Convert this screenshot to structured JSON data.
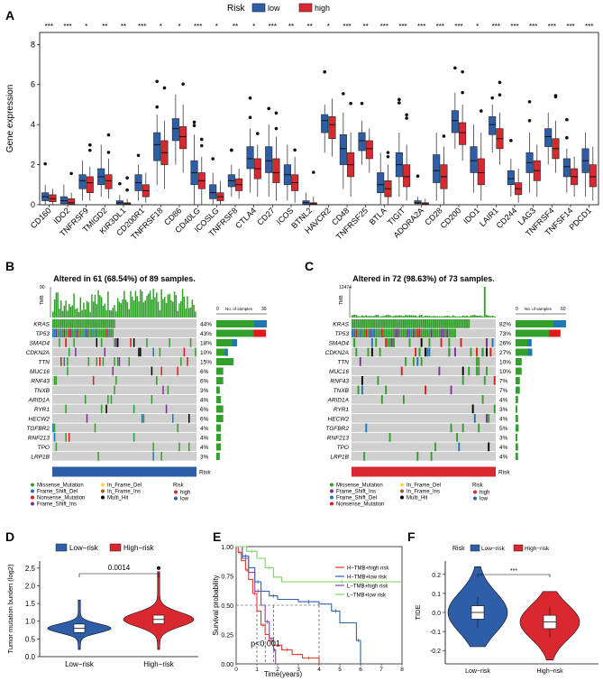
{
  "panel_letters": [
    "A",
    "B",
    "C",
    "D",
    "E",
    "F"
  ],
  "chart_data": [
    {
      "id": "A",
      "type": "boxplot",
      "legend": {
        "title": "Risk",
        "entries": [
          {
            "name": "low",
            "color": "#2f5ea8"
          },
          {
            "name": "high",
            "color": "#d9282f"
          }
        ],
        "position": "top"
      },
      "ylabel": "Gene expression",
      "ylim": [
        0,
        8.6
      ],
      "yticks": [
        0,
        2,
        4,
        6,
        8
      ],
      "categories": [
        "CD160",
        "IDO2",
        "TNFRSF9",
        "TMIGD2",
        "KIR3DL1",
        "CD200R1",
        "TNFRSF18",
        "CD86",
        "CD40LG",
        "ICOSLG",
        "TNFRSF8",
        "CTLA4",
        "CD27",
        "ICOS",
        "BTNL2",
        "HAVCR2",
        "CD48",
        "TNFRSF25",
        "BTLA",
        "TIGIT",
        "ADORA2A",
        "CD28",
        "CD200",
        "IDO1",
        "LAIR1",
        "CD244",
        "LAG3",
        "TNFRSF4",
        "TNFSF14",
        "PDCD1"
      ],
      "significance": [
        "***",
        "***",
        "*",
        "**",
        "**",
        "***",
        "*",
        "*",
        "***",
        "*",
        "**",
        "*",
        "***",
        "**",
        "**",
        "*",
        "***",
        "**",
        "***",
        "***",
        "***",
        "***",
        "***",
        "*",
        "***",
        "***",
        "***",
        "***",
        "***",
        "***"
      ],
      "series": [
        {
          "name": "low",
          "medians": [
            0.4,
            0.2,
            1.2,
            1.4,
            0.1,
            1.1,
            3.0,
            3.8,
            1.6,
            0.6,
            1.2,
            2.3,
            2.2,
            1.5,
            0.1,
            4.2,
            2.8,
            3.2,
            1.0,
            2.0,
            0.1,
            1.7,
            4.2,
            2.2,
            4.0,
            1.3,
            2.1,
            3.4,
            1.9,
            2.2
          ],
          "q1": [
            0.2,
            0.05,
            0.8,
            1.0,
            0.02,
            0.7,
            2.2,
            3.2,
            1.0,
            0.3,
            0.9,
            1.8,
            1.6,
            1.0,
            0.02,
            3.6,
            2.0,
            2.7,
            0.6,
            1.4,
            0.05,
            1.1,
            3.6,
            1.6,
            3.5,
            1.0,
            1.6,
            2.9,
            1.4,
            1.6
          ],
          "q3": [
            0.6,
            0.4,
            1.5,
            1.8,
            0.2,
            1.5,
            3.6,
            4.3,
            2.2,
            1.0,
            1.5,
            2.9,
            2.9,
            2.0,
            0.2,
            4.5,
            3.5,
            3.6,
            1.6,
            2.6,
            0.2,
            2.5,
            4.7,
            2.9,
            4.4,
            1.7,
            2.6,
            3.8,
            2.3,
            2.8
          ],
          "min": [
            0.0,
            0.0,
            0.2,
            0.4,
            0.0,
            0.2,
            1.0,
            2.0,
            0.0,
            0.0,
            0.4,
            0.6,
            0.4,
            0.2,
            0.0,
            2.6,
            0.8,
            2.0,
            0.0,
            0.4,
            0.0,
            0.2,
            2.8,
            0.6,
            2.6,
            0.4,
            0.6,
            2.0,
            0.6,
            0.4
          ],
          "max": [
            1.0,
            1.0,
            2.2,
            3.0,
            0.5,
            2.0,
            4.5,
            5.5,
            3.5,
            1.6,
            2.0,
            3.8,
            4.0,
            3.0,
            0.6,
            5.0,
            4.6,
            4.2,
            2.6,
            3.6,
            0.4,
            3.6,
            5.6,
            4.0,
            5.0,
            2.3,
            3.6,
            4.6,
            2.8,
            3.6
          ]
        },
        {
          "name": "high",
          "medians": [
            0.3,
            0.1,
            1.1,
            1.2,
            0.05,
            0.7,
            2.6,
            3.4,
            1.2,
            0.4,
            1.0,
            1.8,
            1.6,
            1.1,
            0.05,
            4.0,
            2.0,
            2.8,
            0.8,
            1.4,
            0.05,
            1.4,
            3.6,
            1.6,
            3.3,
            0.8,
            1.7,
            2.8,
            1.4,
            1.4
          ],
          "q1": [
            0.15,
            0.03,
            0.6,
            0.8,
            0.01,
            0.4,
            2.0,
            2.8,
            0.8,
            0.2,
            0.7,
            1.3,
            1.1,
            0.7,
            0.01,
            3.3,
            1.4,
            2.3,
            0.4,
            0.9,
            0.02,
            0.8,
            3.0,
            1.0,
            2.8,
            0.5,
            1.2,
            2.3,
            1.0,
            0.9
          ],
          "q3": [
            0.5,
            0.3,
            1.4,
            1.5,
            0.1,
            1.0,
            3.2,
            3.9,
            1.6,
            0.6,
            1.3,
            2.3,
            2.3,
            1.5,
            0.1,
            4.4,
            2.6,
            3.2,
            1.2,
            2.0,
            0.1,
            2.0,
            4.1,
            2.3,
            3.8,
            1.1,
            2.2,
            3.3,
            1.8,
            2.0
          ],
          "min": [
            0.0,
            0.0,
            0.2,
            0.3,
            0.0,
            0.1,
            0.8,
            1.6,
            0.0,
            0.0,
            0.3,
            0.4,
            0.2,
            0.1,
            0.0,
            2.4,
            0.4,
            1.6,
            0.0,
            0.2,
            0.0,
            0.0,
            2.2,
            0.2,
            2.0,
            0.1,
            0.4,
            1.6,
            0.4,
            0.2
          ],
          "max": [
            0.8,
            0.6,
            1.9,
            2.3,
            0.3,
            1.6,
            4.2,
            5.0,
            2.4,
            1.2,
            1.8,
            3.0,
            3.4,
            2.4,
            0.4,
            5.3,
            3.6,
            3.8,
            2.0,
            3.0,
            0.3,
            2.9,
            5.0,
            3.6,
            4.6,
            1.8,
            3.0,
            4.2,
            2.4,
            2.9
          ]
        }
      ]
    },
    {
      "id": "B",
      "type": "oncoplot",
      "title": "Altered in 61 (68.54%) of 89 samples.",
      "tmb_label": "TMB",
      "tmb_max": "90",
      "bar_scale_labels": [
        "0",
        "No. of samples",
        "39"
      ],
      "genes": [
        "KRAS",
        "TP53",
        "SMAD4",
        "CDKN2A",
        "TTN",
        "MUC16",
        "RNF43",
        "TNXB",
        "ARID1A",
        "RYR1",
        "HECW2",
        "TGFBR2",
        "RNF213",
        "TPO",
        "LRP1B"
      ],
      "percentages": [
        "44%",
        "43%",
        "18%",
        "10%",
        "15%",
        "6%",
        "6%",
        "3%",
        "4%",
        "6%",
        "6%",
        "4%",
        "4%",
        "4%",
        "3%"
      ],
      "risk_label": "Risk",
      "risk_color": "#2f5ea8",
      "n_samples": 89,
      "legend_items": [
        "Missense_Mutation",
        "Frame_Shift_Del",
        "Nonsense_Mutation",
        "Frame_Shift_Ins",
        "In_Frame_Del",
        "In_Frame_Ins",
        "Multi_Hit"
      ],
      "risk_legend": {
        "title": "Risk",
        "entries": [
          "high",
          "low"
        ]
      }
    },
    {
      "id": "C",
      "type": "oncoplot",
      "title": "Altered in 72 (98.63%) of 73 samples.",
      "tmb_label": "TMB",
      "tmb_max": "12474",
      "bar_scale_labels": [
        "0",
        "No. of samples",
        "60"
      ],
      "genes": [
        "KRAS",
        "TP53",
        "SMAD4",
        "CDKN2A",
        "TTN",
        "MUC16",
        "RNF43",
        "TNXB",
        "ARID1A",
        "RYR1",
        "HECW2",
        "TGFBR2",
        "RNF213",
        "TPO",
        "LRP1B"
      ],
      "percentages": [
        "82%",
        "73%",
        "26%",
        "27%",
        "10%",
        "10%",
        "7%",
        "7%",
        "4%",
        "3%",
        "4%",
        "5%",
        "3%",
        "4%",
        "4%"
      ],
      "risk_label": "Risk",
      "risk_color": "#d9282f",
      "n_samples": 73,
      "legend_items": [
        "Missense_Mutation",
        "Frame_Shift_Ins",
        "Frame_Shift_Del",
        "Nonsense_Mutation",
        "In_Frame_Del",
        "In_Frame_Ins",
        "Multi_Hit"
      ],
      "risk_legend": {
        "title": "Risk",
        "entries": [
          "high",
          "low"
        ]
      }
    },
    {
      "id": "D",
      "type": "violin",
      "legend": [
        "Low−risk",
        "High−risk"
      ],
      "ylabel": "Tumor mutation burden (log2)",
      "categories": [
        "Low−risk",
        "High−risk"
      ],
      "yticks": [
        "0.0",
        "0.5",
        "1.0",
        "1.5",
        "2.0",
        "2.5"
      ],
      "ylim": [
        0,
        2.7
      ],
      "medians": [
        0.8,
        1.05
      ],
      "pvalue": "0.0014"
    },
    {
      "id": "E",
      "type": "line",
      "ylabel": "Survival probability",
      "xlabel": "Time(years)",
      "xticks": [
        "0",
        "1",
        "2",
        "3",
        "4",
        "5",
        "6",
        "7",
        "8"
      ],
      "yticks": [
        "0.00",
        "0.25",
        "0.50",
        "0.75",
        "1.00"
      ],
      "pvalue": "p<0.001",
      "series": [
        {
          "name": "H−TMB+high risk",
          "color": "#e23a2f",
          "points": [
            [
              0,
              1
            ],
            [
              0.1,
              0.95
            ],
            [
              0.25,
              0.88
            ],
            [
              0.45,
              0.8
            ],
            [
              0.6,
              0.72
            ],
            [
              0.8,
              0.6
            ],
            [
              1,
              0.45
            ],
            [
              1.2,
              0.33
            ],
            [
              1.4,
              0.25
            ],
            [
              1.6,
              0.2
            ],
            [
              1.8,
              0.16
            ],
            [
              2.2,
              0.12
            ],
            [
              2.7,
              0.08
            ],
            [
              3.2,
              0.05
            ],
            [
              3.8,
              0.05
            ],
            [
              4.0,
              0.0
            ]
          ]
        },
        {
          "name": "H−TMB+low risk",
          "color": "#2c64ae",
          "points": [
            [
              0,
              1
            ],
            [
              0.3,
              0.92
            ],
            [
              0.6,
              0.82
            ],
            [
              0.9,
              0.7
            ],
            [
              1.2,
              0.62
            ],
            [
              1.6,
              0.58
            ],
            [
              2.0,
              0.55
            ],
            [
              3.0,
              0.53
            ],
            [
              4.0,
              0.51
            ],
            [
              4.6,
              0.45
            ],
            [
              5.0,
              0.35
            ],
            [
              5.8,
              0.2
            ],
            [
              6.0,
              0.0
            ]
          ]
        },
        {
          "name": "L−TMB+high risk",
          "color": "#7a4ea6",
          "points": [
            [
              0,
              1
            ],
            [
              0.3,
              0.9
            ],
            [
              0.6,
              0.78
            ],
            [
              0.9,
              0.62
            ],
            [
              1.2,
              0.5
            ],
            [
              1.4,
              0.36
            ],
            [
              1.6,
              0.22
            ],
            [
              1.8,
              0.12
            ],
            [
              1.9,
              0.0
            ]
          ]
        },
        {
          "name": "L−TMB+low risk",
          "color": "#7ed35a",
          "points": [
            [
              0,
              1
            ],
            [
              0.5,
              0.96
            ],
            [
              1.0,
              0.9
            ],
            [
              1.4,
              0.82
            ],
            [
              1.8,
              0.74
            ],
            [
              2.2,
              0.7
            ],
            [
              8.0,
              0.7
            ]
          ]
        }
      ]
    },
    {
      "id": "F",
      "type": "violin",
      "legend_title": "Risk",
      "legend": [
        "Low−risk",
        "High−risk"
      ],
      "ylabel": "TIDE",
      "categories": [
        "Low−risk",
        "High−risk"
      ],
      "yticks": [
        "-0.2",
        "-0.1",
        "0.0",
        "0.1",
        "0.2"
      ],
      "ylim": [
        -0.27,
        0.27
      ],
      "medians": [
        0.0,
        -0.05
      ],
      "significance": "***"
    }
  ]
}
